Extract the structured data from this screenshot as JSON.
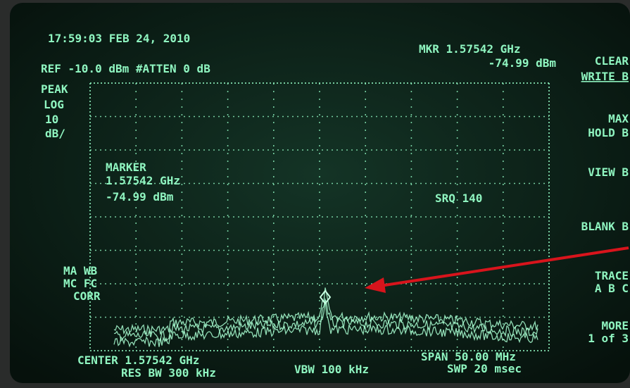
{
  "header": {
    "timestamp": "17:59:03 FEB 24, 2010",
    "reference": "REF -10.0 dBm #ATTEN 0 dB",
    "marker_readout": {
      "frequency": "MKR 1.57542 GHz",
      "level": "-74.99 dBm"
    }
  },
  "scale": [
    "PEAK",
    "LOG",
    "10",
    "dB/"
  ],
  "marker_box": {
    "title": "MARKER",
    "frequency": "1.57542 GHz",
    "level": "-74.99 dBm"
  },
  "status": "SRQ 140",
  "corrections": [
    "MA WB",
    "MC FC",
    "CORR"
  ],
  "footer": {
    "center": "CENTER 1.57542 GHz",
    "res_bw": "RES BW 300 kHz",
    "vbw": "VBW 100 kHz",
    "span": "SPAN 50.00 MHz",
    "sweep": "SWP 20 msec"
  },
  "softkeys": [
    [
      "CLEAR",
      "WRITE B"
    ],
    [
      "MAX",
      "HOLD B"
    ],
    [
      "VIEW B"
    ],
    [
      "BLANK B"
    ],
    [
      "TRACE",
      "A B C"
    ],
    [
      "MORE",
      "1 of 3"
    ]
  ]
}
